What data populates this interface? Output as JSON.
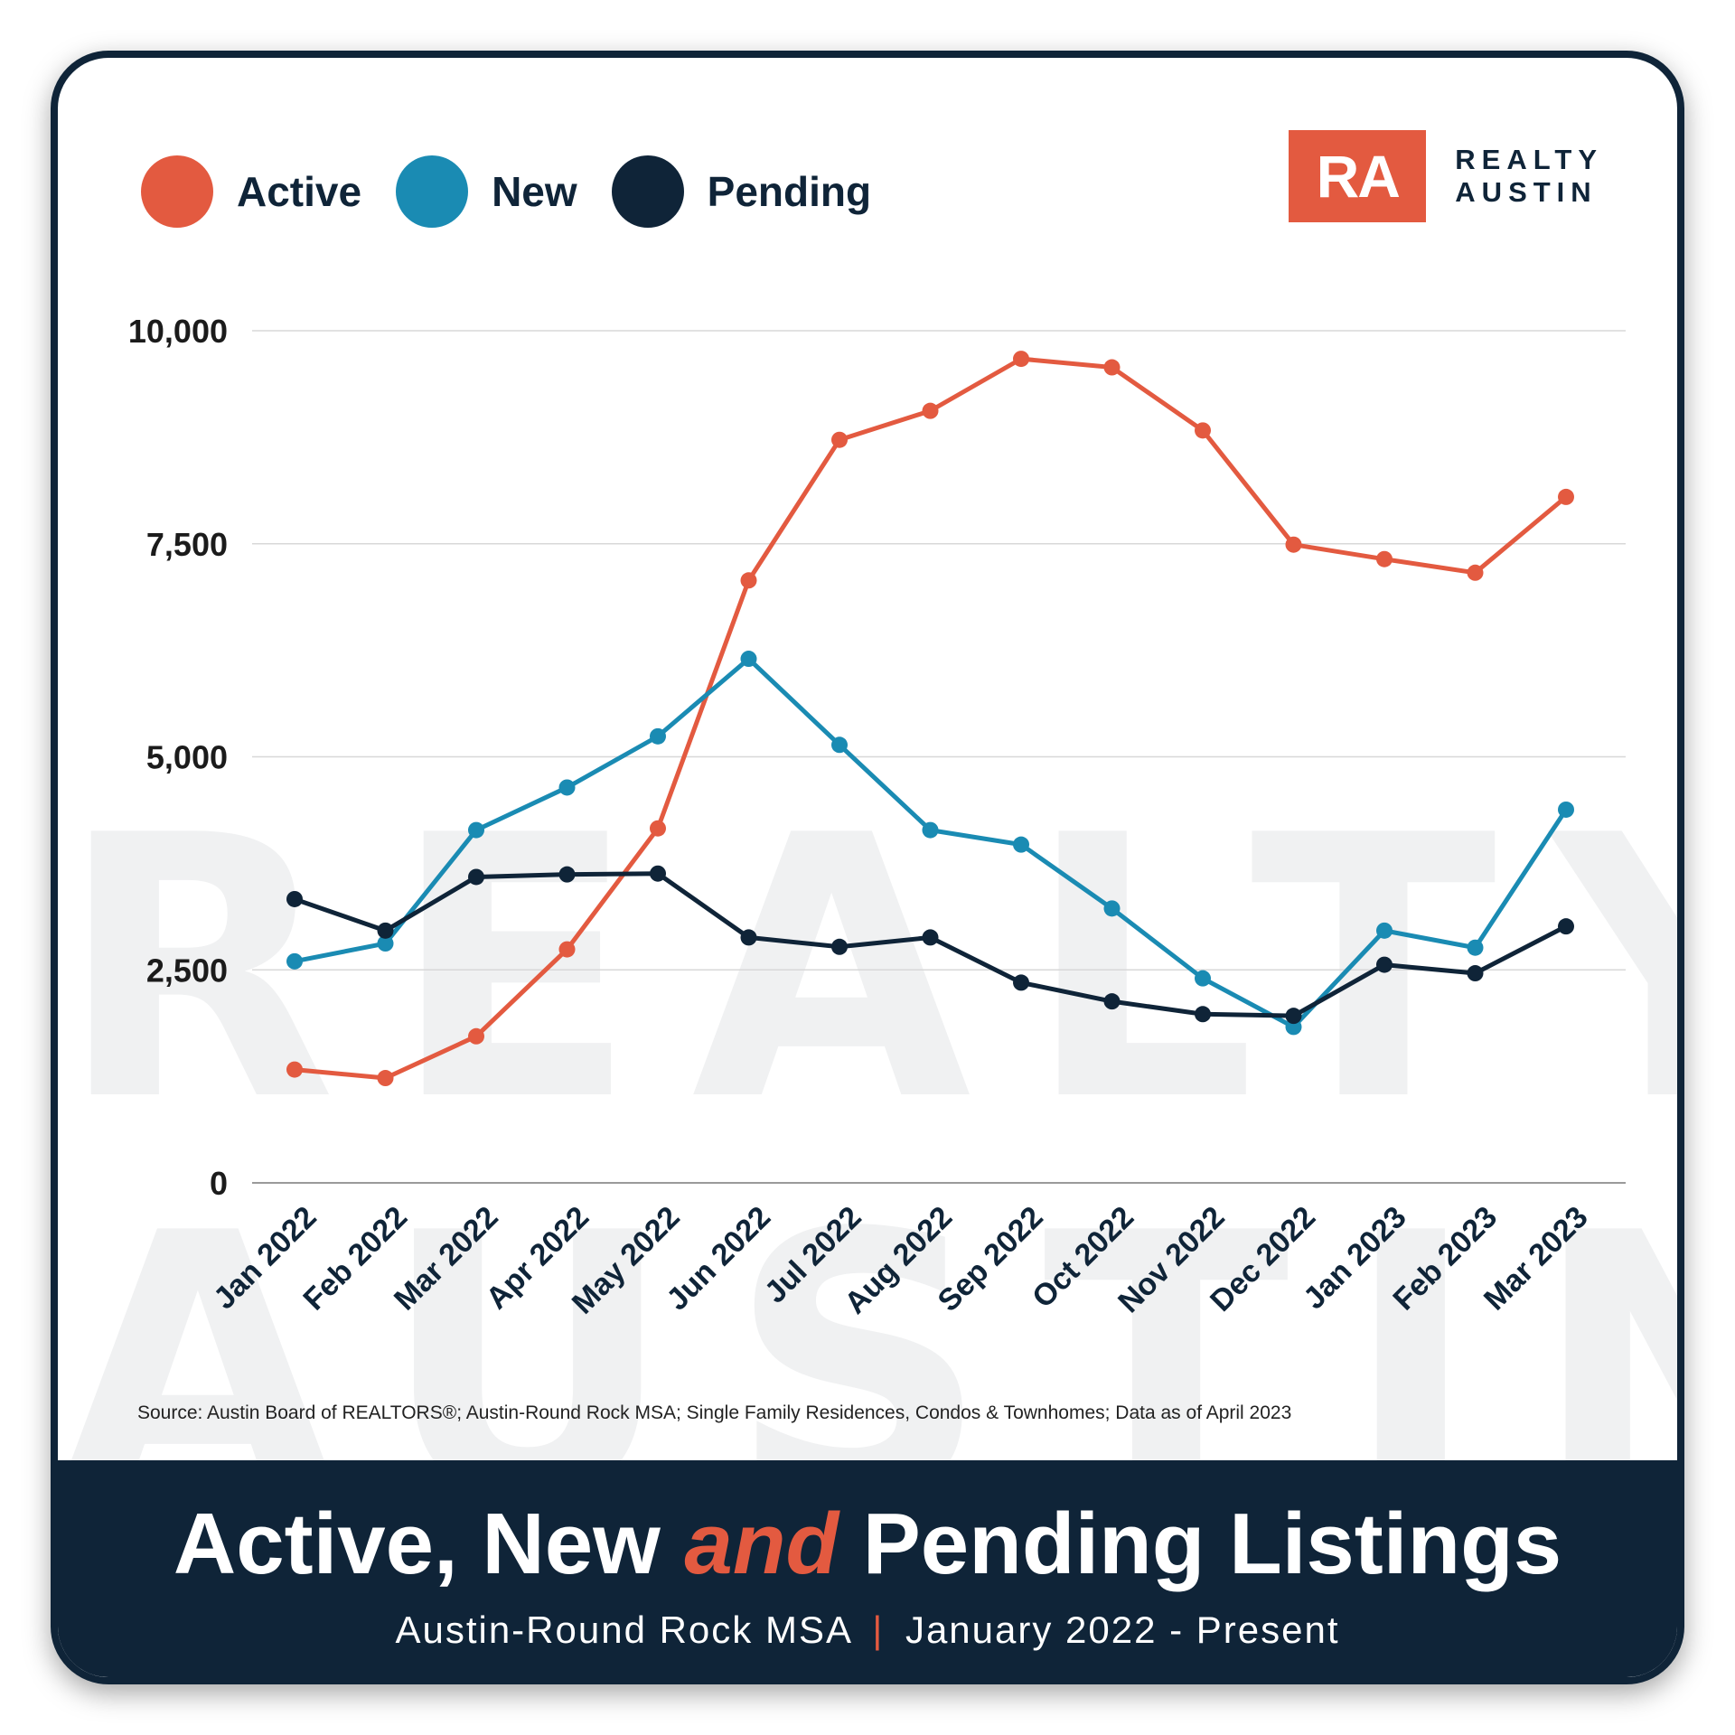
{
  "legend": [
    {
      "label": "Active",
      "color": "#e35a40"
    },
    {
      "label": "New",
      "color": "#1a8bb3"
    },
    {
      "label": "Pending",
      "color": "#0f2438"
    }
  ],
  "logo": {
    "mark": "RA",
    "line1": "REALTY",
    "line2": "AUSTIN",
    "color": "#e35a40"
  },
  "watermark": {
    "line1": "REALTY",
    "line2": "AUSTIN"
  },
  "source": "Source: Austin Board of REALTORS®; Austin-Round Rock MSA; Single Family Residences, Condos & Townhomes; Data as of April 2023",
  "footer": {
    "title_part1": "Active, New ",
    "title_accent": "and",
    "title_part2": " Pending Listings",
    "subtitle_left": "Austin-Round Rock MSA",
    "subtitle_sep": "|",
    "subtitle_right": "January 2022 - Present"
  },
  "chart_data": {
    "type": "line",
    "categories": [
      "Jan 2022",
      "Feb 2022",
      "Mar 2022",
      "Apr 2022",
      "May 2022",
      "Jun 2022",
      "Jul 2022",
      "Aug 2022",
      "Sep 2022",
      "Oct 2022",
      "Nov 2022",
      "Dec 2022",
      "Jan 2023",
      "Feb 2023",
      "Mar 2023"
    ],
    "series": [
      {
        "name": "Active",
        "color": "#e35a40",
        "values": [
          1330,
          1230,
          1720,
          2740,
          4160,
          7070,
          8720,
          9060,
          9670,
          9570,
          8830,
          7490,
          7320,
          7160,
          8050
        ]
      },
      {
        "name": "New",
        "color": "#1a8bb3",
        "values": [
          2600,
          2810,
          4140,
          4640,
          5240,
          6150,
          5140,
          4140,
          3970,
          3220,
          2400,
          1830,
          2960,
          2760,
          4380
        ]
      },
      {
        "name": "Pending",
        "color": "#0f2438",
        "values": [
          3330,
          2960,
          3590,
          3620,
          3630,
          2880,
          2770,
          2880,
          2350,
          2130,
          1980,
          1960,
          2560,
          2460,
          3010
        ]
      }
    ],
    "yticks": [
      "10,000",
      "7,500",
      "5,000",
      "2,500",
      "0"
    ],
    "ytick_values": [
      10000,
      7500,
      5000,
      2500,
      0
    ],
    "ylim": [
      0,
      10000
    ],
    "grid": true,
    "legend_position": "top-left"
  }
}
